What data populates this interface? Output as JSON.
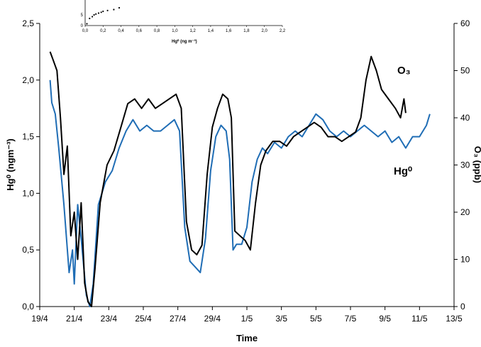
{
  "chart_data": {
    "type": "line",
    "xlabel": "Time",
    "ylabel_left": "Hg⁰ (ngm⁻³)",
    "ylabel_right": "O₃ (ppb)",
    "x_ticks": [
      "19/4",
      "21/4",
      "23/4",
      "25/4",
      "27/4",
      "29/4",
      "1/5",
      "3/5",
      "5/5",
      "7/5",
      "9/5",
      "11/5",
      "13/5"
    ],
    "y_left_ticks": [
      "0,0",
      "0,5",
      "1,0",
      "1,5",
      "2,0",
      "2,5"
    ],
    "y_right_ticks": [
      "0",
      "10",
      "20",
      "30",
      "40",
      "50",
      "60"
    ],
    "ylim_left": [
      0,
      2.5
    ],
    "ylim_right": [
      0,
      60
    ],
    "xlim": [
      0,
      24
    ],
    "annotations": {
      "o3": "O₃",
      "hg": "Hg⁰"
    },
    "colors": {
      "hg": "#1f6db5",
      "o3": "#000000"
    },
    "series": [
      {
        "name": "Hg⁰",
        "axis": "left",
        "color": "#1f6db5",
        "points": [
          [
            0.6,
            2.0
          ],
          [
            0.7,
            1.8
          ],
          [
            0.9,
            1.7
          ],
          [
            1.1,
            1.4
          ],
          [
            1.4,
            0.9
          ],
          [
            1.7,
            0.3
          ],
          [
            1.9,
            0.5
          ],
          [
            2.0,
            0.2
          ],
          [
            2.2,
            0.9
          ],
          [
            2.4,
            0.6
          ],
          [
            2.7,
            0.1
          ],
          [
            2.9,
            0.0
          ],
          [
            3.1,
            0.2
          ],
          [
            3.4,
            0.9
          ],
          [
            3.8,
            1.1
          ],
          [
            4.2,
            1.2
          ],
          [
            4.6,
            1.4
          ],
          [
            5.0,
            1.55
          ],
          [
            5.4,
            1.65
          ],
          [
            5.8,
            1.55
          ],
          [
            6.2,
            1.6
          ],
          [
            6.6,
            1.55
          ],
          [
            7.0,
            1.55
          ],
          [
            7.4,
            1.6
          ],
          [
            7.8,
            1.65
          ],
          [
            8.1,
            1.55
          ],
          [
            8.4,
            0.7
          ],
          [
            8.7,
            0.4
          ],
          [
            9.0,
            0.35
          ],
          [
            9.3,
            0.3
          ],
          [
            9.6,
            0.6
          ],
          [
            9.9,
            1.2
          ],
          [
            10.2,
            1.5
          ],
          [
            10.5,
            1.6
          ],
          [
            10.8,
            1.55
          ],
          [
            11.0,
            1.3
          ],
          [
            11.2,
            0.5
          ],
          [
            11.4,
            0.55
          ],
          [
            11.7,
            0.55
          ],
          [
            12.0,
            0.7
          ],
          [
            12.3,
            1.1
          ],
          [
            12.6,
            1.3
          ],
          [
            12.9,
            1.4
          ],
          [
            13.2,
            1.35
          ],
          [
            13.6,
            1.45
          ],
          [
            14.0,
            1.4
          ],
          [
            14.4,
            1.5
          ],
          [
            14.8,
            1.55
          ],
          [
            15.2,
            1.5
          ],
          [
            15.6,
            1.6
          ],
          [
            16.0,
            1.7
          ],
          [
            16.4,
            1.65
          ],
          [
            16.8,
            1.55
          ],
          [
            17.2,
            1.5
          ],
          [
            17.6,
            1.55
          ],
          [
            18.0,
            1.5
          ],
          [
            18.4,
            1.55
          ],
          [
            18.8,
            1.6
          ],
          [
            19.2,
            1.55
          ],
          [
            19.6,
            1.5
          ],
          [
            20.0,
            1.55
          ],
          [
            20.4,
            1.45
          ],
          [
            20.8,
            1.5
          ],
          [
            21.2,
            1.4
          ],
          [
            21.6,
            1.5
          ],
          [
            22.0,
            1.5
          ],
          [
            22.4,
            1.6
          ],
          [
            22.6,
            1.7
          ]
        ]
      },
      {
        "name": "O₃",
        "axis": "right",
        "color": "#000000",
        "points": [
          [
            0.6,
            54
          ],
          [
            0.8,
            52
          ],
          [
            1.0,
            50
          ],
          [
            1.2,
            40
          ],
          [
            1.4,
            28
          ],
          [
            1.6,
            34
          ],
          [
            1.8,
            15
          ],
          [
            2.0,
            20
          ],
          [
            2.2,
            10
          ],
          [
            2.4,
            22
          ],
          [
            2.6,
            5
          ],
          [
            2.8,
            1
          ],
          [
            3.0,
            0
          ],
          [
            3.2,
            8
          ],
          [
            3.5,
            22
          ],
          [
            3.9,
            30
          ],
          [
            4.3,
            33
          ],
          [
            4.7,
            38
          ],
          [
            5.1,
            43
          ],
          [
            5.5,
            44
          ],
          [
            5.9,
            42
          ],
          [
            6.3,
            44
          ],
          [
            6.7,
            42
          ],
          [
            7.1,
            43
          ],
          [
            7.5,
            44
          ],
          [
            7.9,
            45
          ],
          [
            8.2,
            42
          ],
          [
            8.5,
            18
          ],
          [
            8.8,
            12
          ],
          [
            9.1,
            11
          ],
          [
            9.4,
            13
          ],
          [
            9.7,
            28
          ],
          [
            10.0,
            38
          ],
          [
            10.3,
            42
          ],
          [
            10.6,
            45
          ],
          [
            10.9,
            44
          ],
          [
            11.1,
            40
          ],
          [
            11.3,
            16
          ],
          [
            11.6,
            15
          ],
          [
            11.9,
            14
          ],
          [
            12.2,
            12
          ],
          [
            12.5,
            22
          ],
          [
            12.8,
            30
          ],
          [
            13.1,
            33
          ],
          [
            13.5,
            35
          ],
          [
            13.9,
            35
          ],
          [
            14.3,
            34
          ],
          [
            14.7,
            36
          ],
          [
            15.1,
            37
          ],
          [
            15.5,
            38
          ],
          [
            15.9,
            39
          ],
          [
            16.3,
            38
          ],
          [
            16.7,
            36
          ],
          [
            17.1,
            36
          ],
          [
            17.5,
            35
          ],
          [
            17.9,
            36
          ],
          [
            18.3,
            37
          ],
          [
            18.6,
            40
          ],
          [
            18.9,
            48
          ],
          [
            19.2,
            53
          ],
          [
            19.5,
            50
          ],
          [
            19.8,
            46
          ],
          [
            20.2,
            44
          ],
          [
            20.6,
            42
          ],
          [
            20.9,
            40
          ],
          [
            21.1,
            44
          ],
          [
            21.2,
            41
          ]
        ]
      }
    ],
    "inset": {
      "xlabel": "Hg⁰ (ng m⁻³)",
      "x_ticks": [
        "0,0",
        "0,2",
        "0,4",
        "0,6",
        "0,8",
        "1,0",
        "1,2",
        "1,4",
        "1,6",
        "1,8",
        "2,0",
        "2,2"
      ],
      "y_ticks": [
        "0",
        "5"
      ],
      "xlim": [
        0,
        2.2
      ],
      "points": [
        [
          0.02,
          1
        ],
        [
          0.05,
          4
        ],
        [
          0.08,
          5
        ],
        [
          0.1,
          6
        ],
        [
          0.12,
          6.5
        ],
        [
          0.15,
          7
        ],
        [
          0.18,
          7.5
        ],
        [
          0.2,
          8
        ],
        [
          0.25,
          8.5
        ],
        [
          0.32,
          9
        ],
        [
          0.38,
          10
        ]
      ]
    }
  }
}
